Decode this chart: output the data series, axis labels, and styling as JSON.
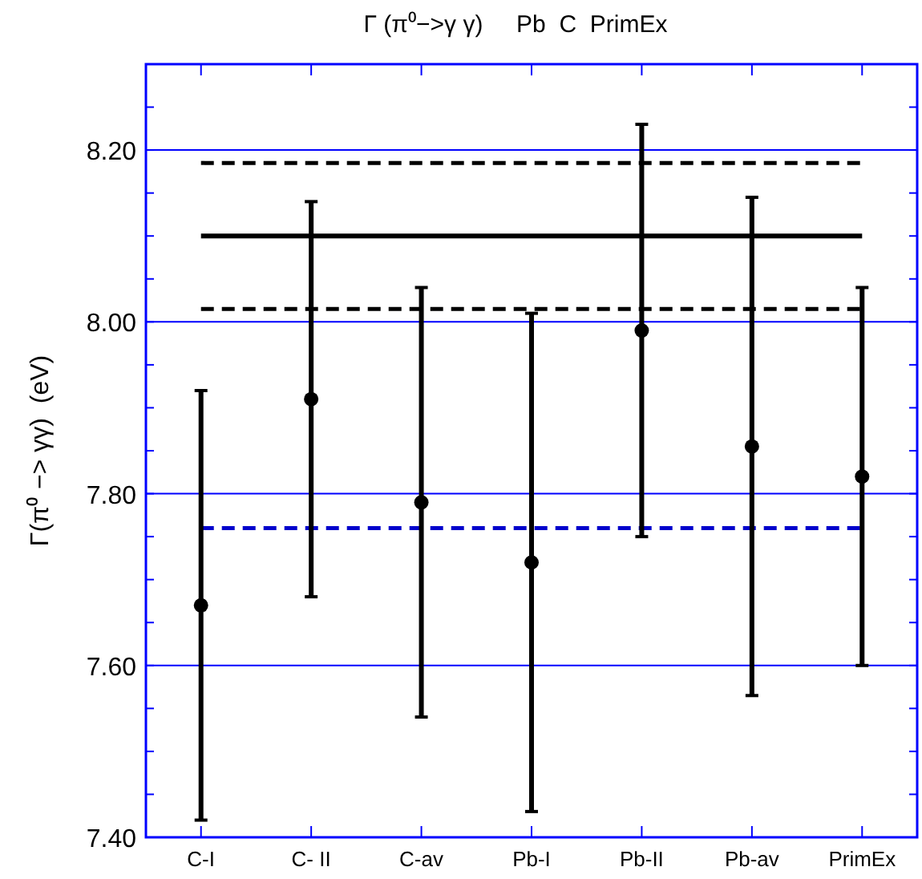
{
  "chart_data": {
    "type": "scatter",
    "title": "Γ (π⁰−>γ γ)     Pb  C  PrimEx",
    "ylabel": "Γ(π⁰ −> γγ)  (eV)",
    "categories": [
      "C-I",
      "C- II",
      "C-av",
      "Pb-I",
      "Pb-II",
      "Pb-av",
      "PrimEx"
    ],
    "series": [
      {
        "color": "#000000",
        "values": [
          7.67,
          7.91,
          7.79,
          7.72,
          7.99,
          7.855,
          7.82
        ],
        "errors": [
          [
            7.42,
            7.92
          ],
          [
            7.68,
            8.14
          ],
          [
            7.54,
            8.04
          ],
          [
            7.43,
            8.01
          ],
          [
            7.75,
            8.23
          ],
          [
            7.565,
            8.145
          ],
          [
            7.6,
            8.04
          ]
        ]
      }
    ],
    "ylim": [
      7.4,
      8.3
    ],
    "yticks": [
      {
        "value": 7.4,
        "label": "7.40"
      },
      {
        "value": 7.6,
        "label": "7.60"
      },
      {
        "value": 7.8,
        "label": "7.80"
      },
      {
        "value": 8.0,
        "label": "8.00"
      },
      {
        "value": 8.2,
        "label": "8.20"
      }
    ],
    "grid": "y",
    "marker": "circle",
    "ref_lines": [
      {
        "axis": "y",
        "value": 8.185,
        "color": "#000000",
        "line_style": "dashed"
      },
      {
        "axis": "y",
        "value": 8.1,
        "color": "#000000",
        "line_style": "solid"
      },
      {
        "axis": "y",
        "value": 8.015,
        "color": "#000000",
        "line_style": "dashed"
      },
      {
        "axis": "y",
        "value": 7.76,
        "color": "#0000cc",
        "line_style": "dashed"
      }
    ]
  }
}
